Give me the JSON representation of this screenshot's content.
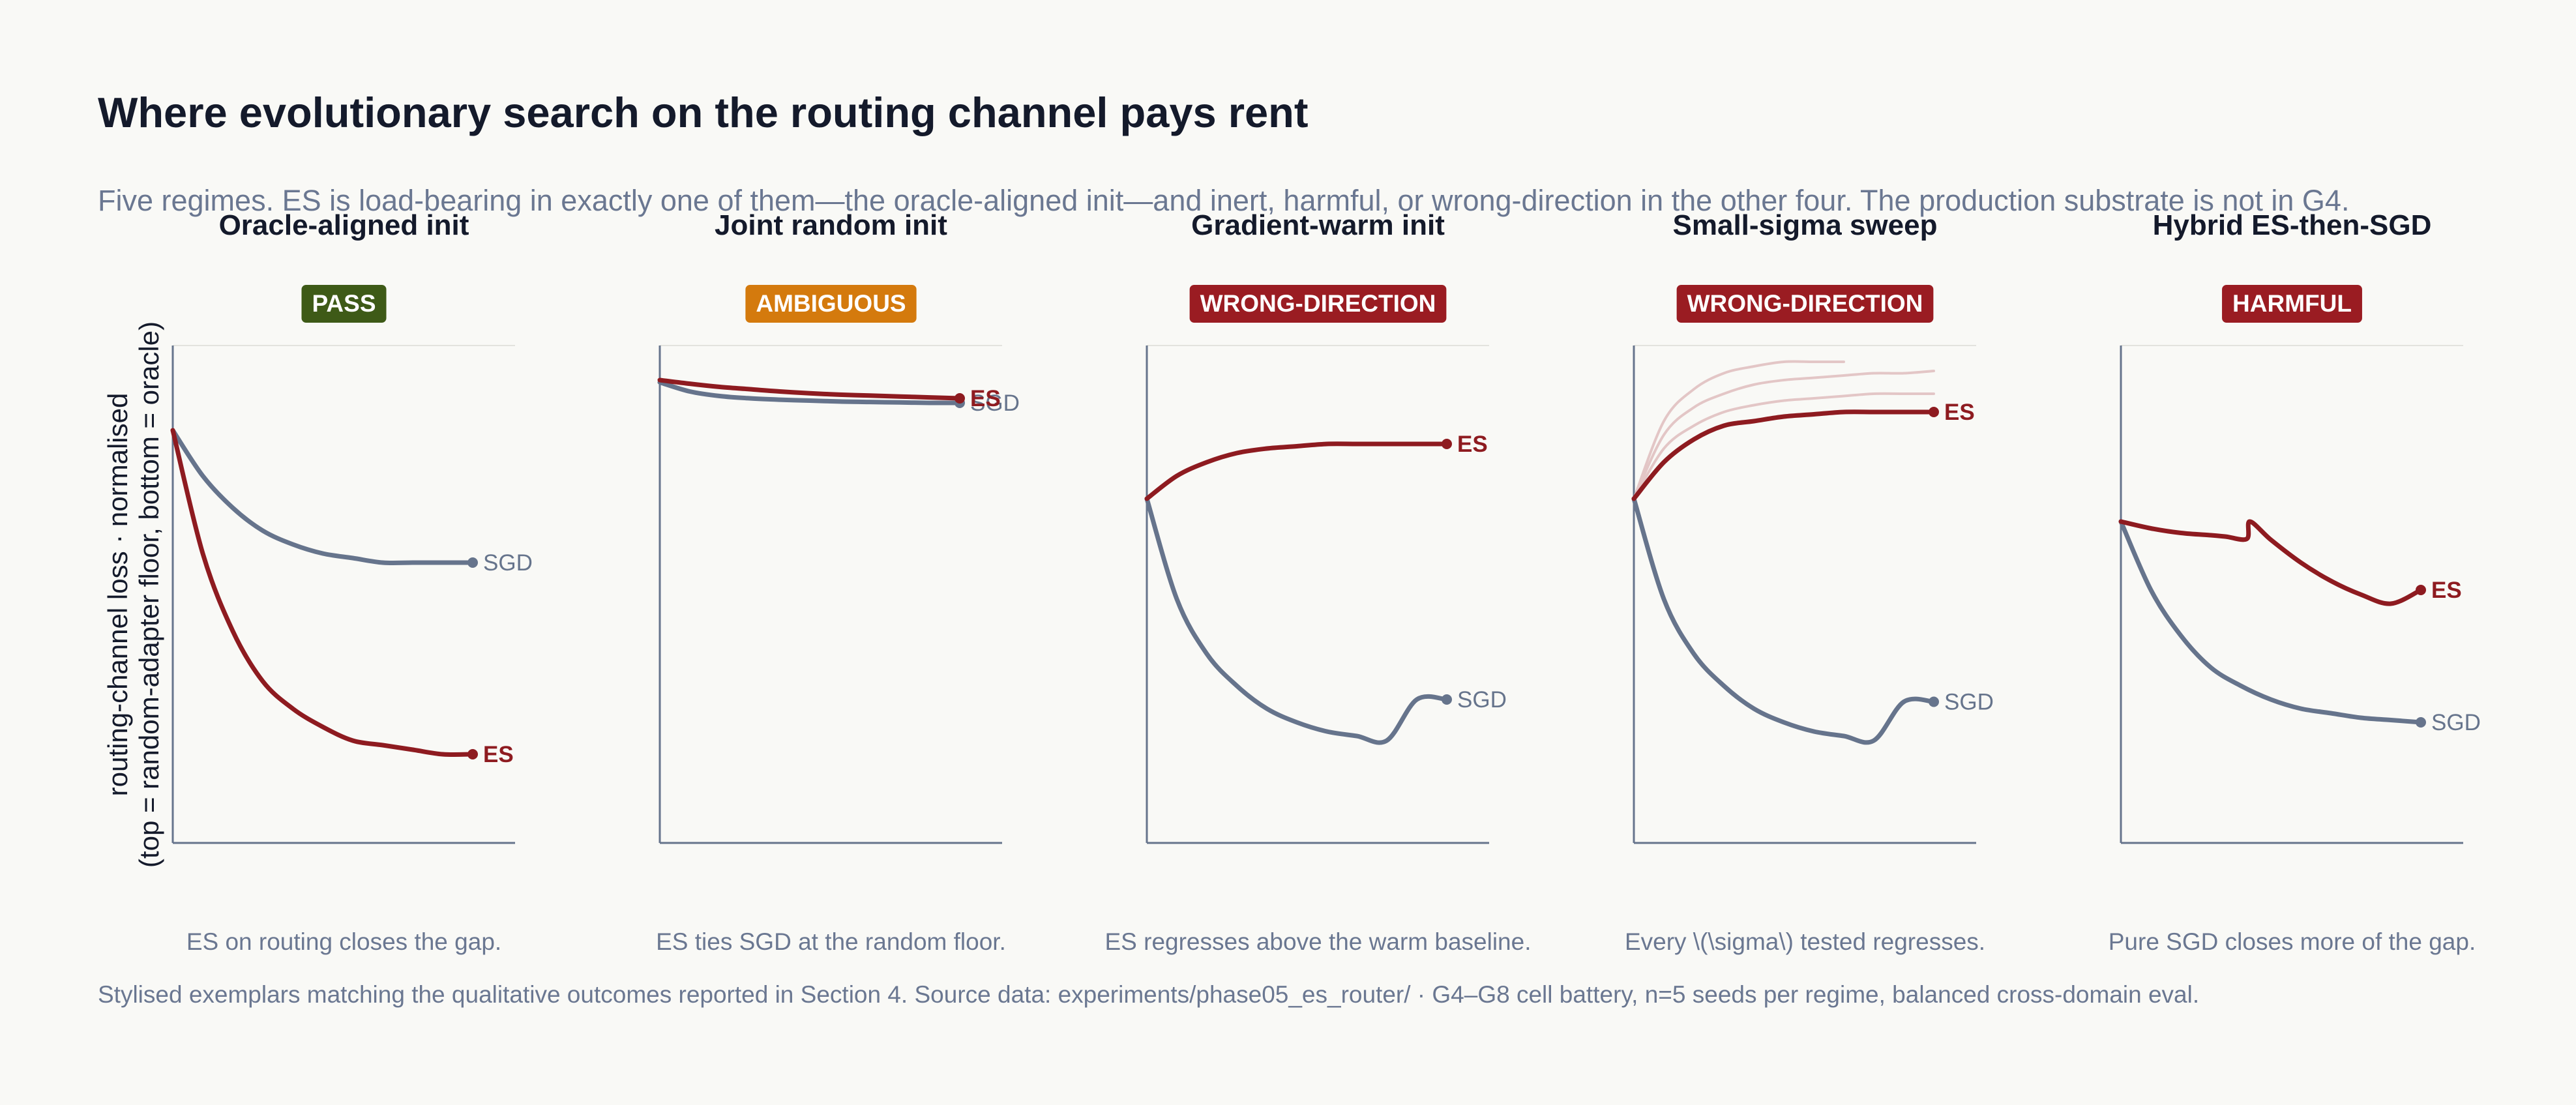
{
  "title": "Where evolutionary search on the routing channel pays rent",
  "subtitle": "Five regimes. ES is load-bearing in exactly one of them—the oracle-aligned init—and inert, harmful, or wrong-direction in the other four. The production substrate is not in G4.",
  "footer": "Stylised exemplars matching the qualitative outcomes reported in Section 4. Source data: experiments/phase05_es_router/  ·  G4–G8 cell battery, n=5 seeds per regime, balanced cross-domain eval.",
  "colors": {
    "es": "#8e1b20",
    "sgd": "#66748c",
    "es_faint": "#e3c6c6",
    "pass": "#3e5a17",
    "ambiguous": "#d47a0d",
    "wrong": "#9a1c22",
    "harmful": "#9a1c22",
    "axis": "#66748c",
    "grid": "#e3e3de"
  },
  "chart_data": [
    {
      "type": "line",
      "title": "Oracle-aligned init",
      "badge": "PASS",
      "badge_color": "#3e5a17",
      "caption": "ES on routing closes the gap.",
      "ylabel": "routing-channel loss  ·  normalised\n(top = random-adapter floor, bottom = oracle)",
      "xlabel": "",
      "ylim": [
        0,
        1
      ],
      "series": [
        {
          "name": "SGD",
          "x": [
            0.0,
            0.1,
            0.2,
            0.3,
            0.4,
            0.5,
            0.6,
            0.7,
            0.8,
            0.9,
            1.0
          ],
          "y": [
            0.85,
            0.75,
            0.68,
            0.63,
            0.6,
            0.58,
            0.57,
            0.56,
            0.56,
            0.56,
            0.56
          ]
        },
        {
          "name": "ES",
          "x": [
            0.0,
            0.1,
            0.2,
            0.3,
            0.4,
            0.5,
            0.6,
            0.7,
            0.8,
            0.9,
            1.0
          ],
          "y": [
            0.85,
            0.58,
            0.41,
            0.3,
            0.24,
            0.2,
            0.17,
            0.16,
            0.15,
            0.14,
            0.14
          ]
        }
      ]
    },
    {
      "type": "line",
      "title": "Joint random init",
      "badge": "AMBIGUOUS",
      "badge_color": "#d47a0d",
      "caption": "ES ties SGD at the random floor.",
      "xlabel": "",
      "ylim": [
        0,
        1
      ],
      "series": [
        {
          "name": "SGD",
          "x": [
            0.0,
            0.1,
            0.2,
            0.3,
            0.4,
            0.5,
            0.6,
            0.7,
            0.8,
            0.9,
            1.0
          ],
          "y": [
            0.955,
            0.935,
            0.925,
            0.92,
            0.917,
            0.915,
            0.913,
            0.912,
            0.911,
            0.91,
            0.91
          ]
        },
        {
          "name": "ES",
          "x": [
            0.0,
            0.1,
            0.2,
            0.3,
            0.4,
            0.5,
            0.6,
            0.7,
            0.8,
            0.9,
            1.0
          ],
          "y": [
            0.96,
            0.952,
            0.945,
            0.94,
            0.935,
            0.931,
            0.928,
            0.926,
            0.924,
            0.922,
            0.92
          ]
        }
      ]
    },
    {
      "type": "line",
      "title": "Gradient-warm init",
      "badge": "WRONG-DIRECTION",
      "badge_color": "#9a1c22",
      "caption": "ES regresses above the warm baseline.",
      "xlabel": "",
      "ylim": [
        0,
        1
      ],
      "series": [
        {
          "name": "ES",
          "x": [
            0.0,
            0.1,
            0.2,
            0.3,
            0.4,
            0.5,
            0.6,
            0.7,
            0.8,
            0.9,
            1.0
          ],
          "y": [
            0.7,
            0.75,
            0.78,
            0.8,
            0.81,
            0.815,
            0.82,
            0.82,
            0.82,
            0.82,
            0.82
          ]
        },
        {
          "name": "SGD",
          "x": [
            0.0,
            0.1,
            0.2,
            0.3,
            0.4,
            0.5,
            0.6,
            0.7,
            0.8,
            0.9,
            1.0
          ],
          "y": [
            0.7,
            0.48,
            0.36,
            0.29,
            0.24,
            0.21,
            0.19,
            0.18,
            0.17,
            0.26,
            0.26
          ]
        }
      ]
    },
    {
      "type": "line",
      "title": "Small-sigma sweep",
      "badge": "WRONG-DIRECTION",
      "badge_color": "#9a1c22",
      "caption": "Every \\(\\sigma\\) tested regresses.",
      "xlabel": "",
      "ylim": [
        0,
        1
      ],
      "series": [
        {
          "name": "ES",
          "x": [
            0.0,
            0.1,
            0.2,
            0.3,
            0.4,
            0.5,
            0.6,
            0.7,
            0.8,
            0.9,
            1.0
          ],
          "y": [
            0.7,
            0.78,
            0.83,
            0.86,
            0.87,
            0.88,
            0.885,
            0.89,
            0.89,
            0.89,
            0.89
          ]
        },
        {
          "name": "",
          "faint": true,
          "x": [
            0.0,
            0.1,
            0.2,
            0.3,
            0.4,
            0.5,
            0.6,
            0.7,
            0.8,
            0.9,
            1.0
          ],
          "y": [
            0.7,
            0.81,
            0.86,
            0.89,
            0.905,
            0.915,
            0.92,
            0.925,
            0.93,
            0.93,
            0.93
          ]
        },
        {
          "name": "",
          "faint": true,
          "x": [
            0.0,
            0.1,
            0.2,
            0.3,
            0.4,
            0.5,
            0.6,
            0.7,
            0.8,
            0.9,
            1.0
          ],
          "y": [
            0.7,
            0.84,
            0.9,
            0.93,
            0.95,
            0.96,
            0.965,
            0.97,
            0.975,
            0.975,
            0.98
          ]
        },
        {
          "name": "",
          "faint": true,
          "x": [
            0.0,
            0.1,
            0.2,
            0.3,
            0.4,
            0.5,
            0.6,
            0.7
          ],
          "y": [
            0.7,
            0.87,
            0.94,
            0.975,
            0.99,
            1.0,
            1.0,
            1.0
          ]
        },
        {
          "name": "SGD",
          "x": [
            0.0,
            0.1,
            0.2,
            0.3,
            0.4,
            0.5,
            0.6,
            0.7,
            0.8,
            0.9,
            1.0
          ],
          "y": [
            0.7,
            0.48,
            0.36,
            0.29,
            0.24,
            0.21,
            0.19,
            0.18,
            0.17,
            0.255,
            0.255
          ]
        }
      ]
    },
    {
      "type": "line",
      "title": "Hybrid ES-then-SGD",
      "badge": "HARMFUL",
      "badge_color": "#9a1c22",
      "caption": "Pure SGD closes more of the gap.",
      "xlabel": "",
      "ylim": [
        0,
        1
      ],
      "series": [
        {
          "name": "ES",
          "x": [
            0.0,
            0.1,
            0.2,
            0.3,
            0.35,
            0.42,
            0.43,
            0.5,
            0.6,
            0.7,
            0.8,
            0.9,
            1.0
          ],
          "y": [
            0.65,
            0.635,
            0.625,
            0.62,
            0.617,
            0.612,
            0.65,
            0.61,
            0.56,
            0.52,
            0.49,
            0.47,
            0.5
          ]
        },
        {
          "name": "SGD",
          "x": [
            0.0,
            0.1,
            0.2,
            0.3,
            0.4,
            0.5,
            0.6,
            0.7,
            0.8,
            0.9,
            1.0
          ],
          "y": [
            0.65,
            0.5,
            0.4,
            0.33,
            0.29,
            0.26,
            0.24,
            0.23,
            0.22,
            0.215,
            0.21
          ]
        }
      ]
    }
  ]
}
